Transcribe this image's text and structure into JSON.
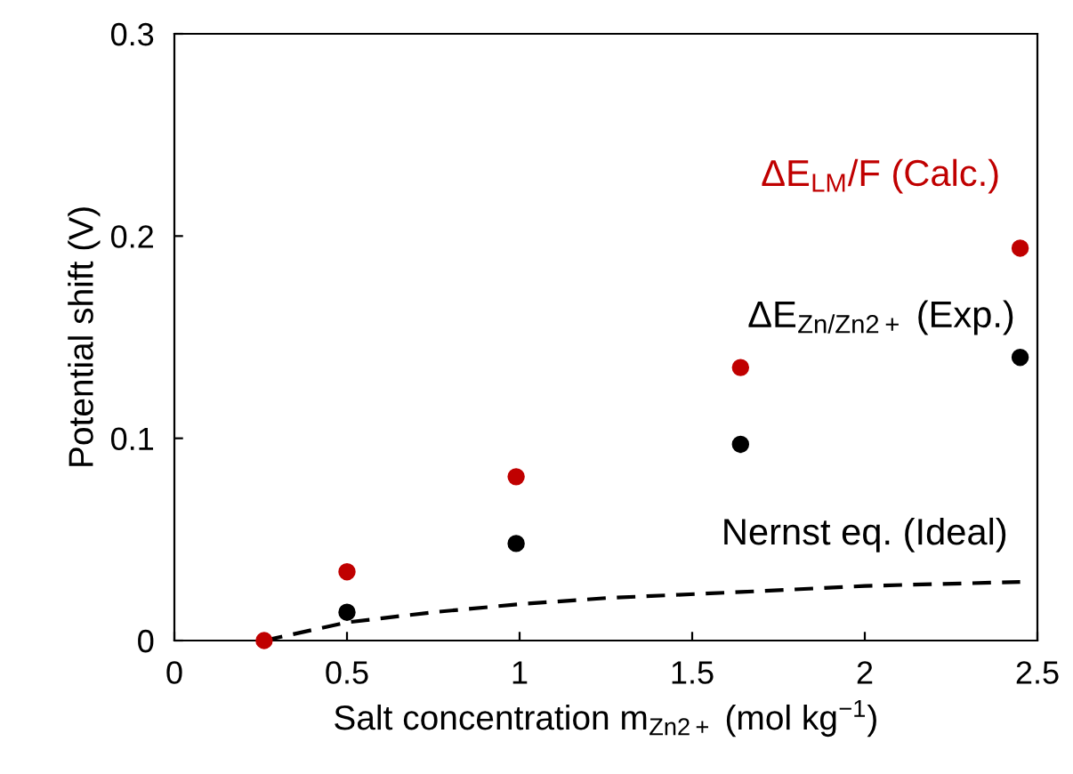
{
  "chart_data": {
    "type": "scatter",
    "xlabel": "Salt concentration m$_{Zn2+}$ (mol kg$^{−1}$)",
    "ylabel": "Potential shift (V)",
    "xlim": [
      0,
      2.5
    ],
    "ylim": [
      0,
      0.3
    ],
    "xticks": [
      0,
      0.5,
      1,
      1.5,
      2,
      2.5
    ],
    "yticks": [
      0,
      0.1,
      0.2,
      0.3
    ],
    "grid": false,
    "legend": false,
    "marker": "circle",
    "series": [
      {
        "name": "Nernst eq. (Ideal)",
        "type": "line",
        "line_style": "dashed",
        "marker": "none",
        "color": "#000000",
        "x": [
          0.26,
          0.5,
          0.75,
          1.0,
          1.25,
          1.64,
          2.0,
          2.45
        ],
        "values": [
          0,
          0.009,
          0.014,
          0.018,
          0.021,
          0.024,
          0.027,
          0.029
        ]
      },
      {
        "name": "ΔE$_{Zn/Zn2+}$ (Exp.)",
        "color": "#000000",
        "x": [
          0.5,
          0.99,
          1.64,
          2.45
        ],
        "values": [
          0.014,
          0.048,
          0.097,
          0.14
        ]
      },
      {
        "name": "ΔE$_{LM}$/F (Calc.)",
        "color": "#c00000",
        "x": [
          0.26,
          0.5,
          0.99,
          1.64,
          2.45
        ],
        "values": [
          0,
          0.034,
          0.081,
          0.135,
          0.194
        ]
      }
    ]
  }
}
